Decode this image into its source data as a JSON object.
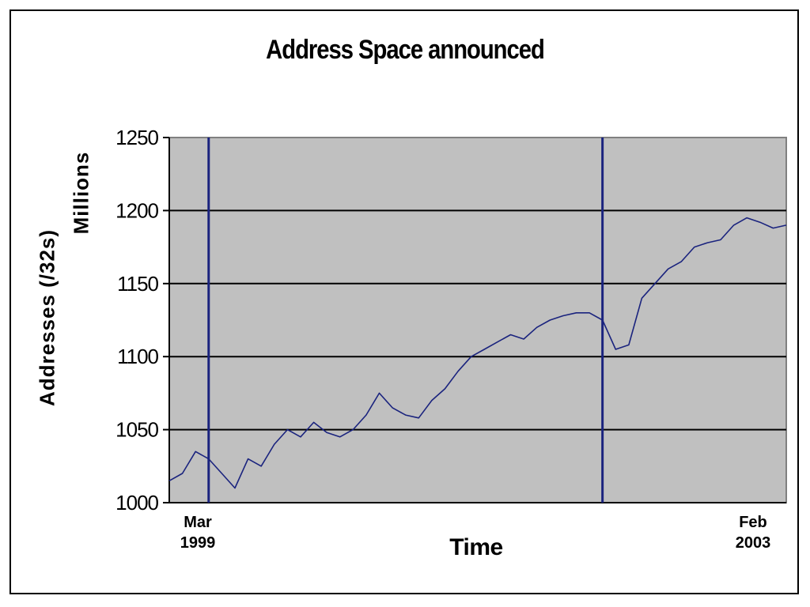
{
  "chart_data": {
    "type": "line",
    "title": "Address Space announced",
    "xlabel": "Time",
    "ylabel": "Addresses (/32s)",
    "yunit": "Millions",
    "ylim": [
      1000,
      1250
    ],
    "yticks": [
      1000,
      1050,
      1100,
      1150,
      1200,
      1250
    ],
    "xlim": [
      "1999-03",
      "2003-02"
    ],
    "xtick_labels": [
      {
        "line1": "Mar",
        "line2": "1999"
      },
      {
        "line1": "Feb",
        "line2": "2003"
      }
    ],
    "grid": true,
    "colors": {
      "plot_bg": "#c0c0c0",
      "line": "#1a237e",
      "grid": "#000000"
    },
    "series": [
      {
        "name": "",
        "x": [
          "1999-03",
          "1999-04",
          "1999-05",
          "1999-06",
          "1999-07",
          "1999-08",
          "1999-09",
          "1999-10",
          "1999-11",
          "1999-12",
          "2000-01",
          "2000-02",
          "2000-03",
          "2000-04",
          "2000-05",
          "2000-06",
          "2000-07",
          "2000-08",
          "2000-09",
          "2000-10",
          "2000-11",
          "2000-12",
          "2001-01",
          "2001-02",
          "2001-03",
          "2001-04",
          "2001-05",
          "2001-06",
          "2001-07",
          "2001-08",
          "2001-09",
          "2001-10",
          "2001-11",
          "2001-12",
          "2002-01",
          "2002-02",
          "2002-03",
          "2002-04",
          "2002-05",
          "2002-06",
          "2002-07",
          "2002-08",
          "2002-09",
          "2002-10",
          "2002-11",
          "2002-12",
          "2003-01",
          "2003-02"
        ],
        "values": [
          1015,
          1020,
          1035,
          1030,
          1020,
          1010,
          1030,
          1025,
          1040,
          1050,
          1045,
          1055,
          1048,
          1045,
          1050,
          1060,
          1075,
          1065,
          1060,
          1058,
          1070,
          1078,
          1090,
          1100,
          1105,
          1110,
          1115,
          1112,
          1120,
          1125,
          1128,
          1130,
          1130,
          1125,
          1105,
          1108,
          1140,
          1150,
          1160,
          1165,
          1175,
          1178,
          1180,
          1190,
          1195,
          1192,
          1188,
          1190
        ]
      }
    ],
    "spikes": [
      {
        "x": "1999-06",
        "low": 1000,
        "high": 1250
      },
      {
        "x": "2001-12",
        "low": 1000,
        "high": 1250
      }
    ]
  }
}
